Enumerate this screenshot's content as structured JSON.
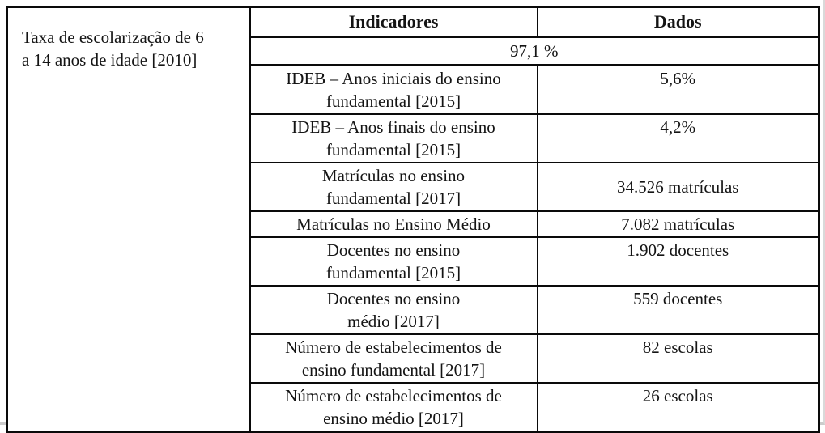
{
  "page": {
    "background": "#ffffff",
    "border_color": "#0a0a0a",
    "text_color": "#141414"
  },
  "table": {
    "row_label": "Taxa de escolarização de 6\na 14 anos de idade [2010]",
    "headers": {
      "indicators": "Indicadores",
      "data": "Dados"
    },
    "merged_value": "97,1 %",
    "rows": [
      {
        "indicator": "IDEB – Anos iniciais do ensino\nfundamental [2015]",
        "value": "5,6%"
      },
      {
        "indicator": "IDEB – Anos finais do ensino\nfundamental [2015]",
        "value": "4,2%"
      },
      {
        "indicator": "Matrículas no ensino\nfundamental [2017]",
        "value": "34.526 matrículas"
      },
      {
        "indicator": "Matrículas no Ensino Médio",
        "value": "7.082 matrículas"
      },
      {
        "indicator": "Docentes no ensino\nfundamental [2015]",
        "value": "1.902 docentes"
      },
      {
        "indicator": "Docentes no ensino\nmédio [2017]",
        "value": "559 docentes"
      },
      {
        "indicator": "Número de estabelecimentos de\nensino fundamental [2017]",
        "value": "82 escolas"
      },
      {
        "indicator": "Número de estabelecimentos de\nensino médio [2017]",
        "value": "26 escolas"
      }
    ]
  }
}
